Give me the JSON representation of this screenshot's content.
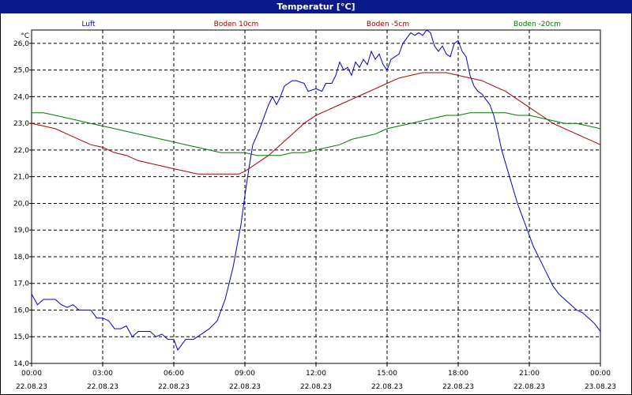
{
  "window": {
    "title": "Temperatur [°C]"
  },
  "chart_data": {
    "type": "line",
    "title": "Temperatur [°C]",
    "ylabel": "°C",
    "ylim": [
      14.0,
      26.5
    ],
    "y_ticks": [
      "14,0",
      "15,0",
      "16,0",
      "17,0",
      "18,0",
      "19,0",
      "20,0",
      "21,0",
      "22,0",
      "23,0",
      "24,0",
      "25,0",
      "26,0"
    ],
    "x_ticks": [
      {
        "time": "00:00",
        "date": "22.08.23"
      },
      {
        "time": "03:00",
        "date": "22.08.23"
      },
      {
        "time": "06:00",
        "date": "22.08.23"
      },
      {
        "time": "09:00",
        "date": "22.08.23"
      },
      {
        "time": "12:00",
        "date": "22.08.23"
      },
      {
        "time": "15:00",
        "date": "22.08.23"
      },
      {
        "time": "18:00",
        "date": "22.08.23"
      },
      {
        "time": "21:00",
        "date": "22.08.23"
      },
      {
        "time": "00:00",
        "date": "23.08.23"
      }
    ],
    "grid": true,
    "legend_position": "top",
    "series": [
      {
        "name": "Luft",
        "color": "#0000cc",
        "points": [
          [
            "00:00",
            16.6
          ],
          [
            "00:15",
            16.2
          ],
          [
            "00:30",
            16.4
          ],
          [
            "01:00",
            16.4
          ],
          [
            "01:15",
            16.2
          ],
          [
            "01:30",
            16.1
          ],
          [
            "01:45",
            16.2
          ],
          [
            "02:00",
            16.0
          ],
          [
            "02:30",
            16.0
          ],
          [
            "02:45",
            15.7
          ],
          [
            "03:00",
            15.7
          ],
          [
            "03:15",
            15.6
          ],
          [
            "03:30",
            15.3
          ],
          [
            "03:45",
            15.3
          ],
          [
            "04:00",
            15.4
          ],
          [
            "04:15",
            15.0
          ],
          [
            "04:30",
            15.2
          ],
          [
            "05:00",
            15.2
          ],
          [
            "05:15",
            15.0
          ],
          [
            "05:30",
            15.1
          ],
          [
            "05:45",
            14.9
          ],
          [
            "06:00",
            14.9
          ],
          [
            "06:10",
            14.5
          ],
          [
            "06:20",
            14.7
          ],
          [
            "06:30",
            14.9
          ],
          [
            "06:50",
            14.9
          ],
          [
            "07:10",
            15.1
          ],
          [
            "07:30",
            15.3
          ],
          [
            "07:50",
            15.6
          ],
          [
            "08:10",
            16.4
          ],
          [
            "08:30",
            17.6
          ],
          [
            "08:50",
            19.2
          ],
          [
            "09:00",
            20.3
          ],
          [
            "09:10",
            21.3
          ],
          [
            "09:20",
            22.2
          ],
          [
            "09:35",
            22.7
          ],
          [
            "09:45",
            23.1
          ],
          [
            "10:00",
            23.7
          ],
          [
            "10:10",
            24.0
          ],
          [
            "10:20",
            23.7
          ],
          [
            "10:30",
            24.0
          ],
          [
            "10:40",
            24.4
          ],
          [
            "10:50",
            24.5
          ],
          [
            "11:00",
            24.6
          ],
          [
            "11:10",
            24.6
          ],
          [
            "11:30",
            24.5
          ],
          [
            "11:40",
            24.2
          ],
          [
            "12:00",
            24.3
          ],
          [
            "12:15",
            24.2
          ],
          [
            "12:25",
            24.5
          ],
          [
            "12:40",
            24.5
          ],
          [
            "12:50",
            24.8
          ],
          [
            "13:00",
            25.3
          ],
          [
            "13:10",
            25.0
          ],
          [
            "13:20",
            25.1
          ],
          [
            "13:30",
            24.8
          ],
          [
            "13:40",
            25.3
          ],
          [
            "13:50",
            25.1
          ],
          [
            "14:00",
            25.4
          ],
          [
            "14:10",
            25.2
          ],
          [
            "14:20",
            25.7
          ],
          [
            "14:30",
            25.4
          ],
          [
            "14:40",
            25.6
          ],
          [
            "14:50",
            25.2
          ],
          [
            "15:00",
            25.0
          ],
          [
            "15:10",
            25.4
          ],
          [
            "15:20",
            25.5
          ],
          [
            "15:30",
            25.6
          ],
          [
            "15:40",
            26.0
          ],
          [
            "15:50",
            26.2
          ],
          [
            "16:00",
            26.4
          ],
          [
            "16:10",
            26.3
          ],
          [
            "16:20",
            26.4
          ],
          [
            "16:30",
            26.3
          ],
          [
            "16:40",
            26.5
          ],
          [
            "16:50",
            26.4
          ],
          [
            "17:00",
            25.9
          ],
          [
            "17:10",
            25.7
          ],
          [
            "17:20",
            25.9
          ],
          [
            "17:30",
            25.6
          ],
          [
            "17:40",
            25.5
          ],
          [
            "17:50",
            26.0
          ],
          [
            "18:00",
            26.1
          ],
          [
            "18:10",
            25.7
          ],
          [
            "18:20",
            25.5
          ],
          [
            "18:30",
            24.8
          ],
          [
            "18:40",
            24.4
          ],
          [
            "18:50",
            24.2
          ],
          [
            "19:00",
            24.1
          ],
          [
            "19:10",
            23.9
          ],
          [
            "19:20",
            23.7
          ],
          [
            "19:30",
            23.3
          ],
          [
            "19:40",
            22.7
          ],
          [
            "19:50",
            22.0
          ],
          [
            "20:00",
            21.5
          ],
          [
            "20:10",
            21.0
          ],
          [
            "20:20",
            20.5
          ],
          [
            "20:30",
            20.0
          ],
          [
            "20:40",
            19.6
          ],
          [
            "20:50",
            19.2
          ],
          [
            "21:00",
            18.8
          ],
          [
            "21:10",
            18.4
          ],
          [
            "21:20",
            18.1
          ],
          [
            "21:30",
            17.8
          ],
          [
            "21:40",
            17.5
          ],
          [
            "21:50",
            17.2
          ],
          [
            "22:00",
            16.9
          ],
          [
            "22:15",
            16.6
          ],
          [
            "22:30",
            16.4
          ],
          [
            "22:45",
            16.2
          ],
          [
            "23:00",
            16.0
          ],
          [
            "23:15",
            15.9
          ],
          [
            "23:30",
            15.7
          ],
          [
            "23:45",
            15.5
          ],
          [
            "24:00",
            15.2
          ]
        ]
      },
      {
        "name": "Boden 10cm",
        "color": "#aa0000",
        "points": [
          [
            "00:00",
            23.0
          ],
          [
            "00:30",
            22.9
          ],
          [
            "01:00",
            22.8
          ],
          [
            "01:30",
            22.6
          ],
          [
            "02:00",
            22.4
          ],
          [
            "02:30",
            22.2
          ],
          [
            "03:00",
            22.1
          ],
          [
            "03:30",
            21.9
          ],
          [
            "04:00",
            21.8
          ],
          [
            "04:30",
            21.6
          ],
          [
            "05:00",
            21.5
          ],
          [
            "05:30",
            21.4
          ],
          [
            "06:00",
            21.3
          ],
          [
            "06:30",
            21.2
          ],
          [
            "07:00",
            21.1
          ],
          [
            "08:00",
            21.1
          ],
          [
            "08:45",
            21.1
          ],
          [
            "09:00",
            21.2
          ],
          [
            "09:20",
            21.4
          ],
          [
            "09:40",
            21.6
          ],
          [
            "10:00",
            21.8
          ],
          [
            "10:30",
            22.2
          ],
          [
            "11:00",
            22.6
          ],
          [
            "11:30",
            23.0
          ],
          [
            "12:00",
            23.3
          ],
          [
            "12:30",
            23.5
          ],
          [
            "13:00",
            23.7
          ],
          [
            "13:30",
            23.9
          ],
          [
            "14:00",
            24.1
          ],
          [
            "14:30",
            24.3
          ],
          [
            "15:00",
            24.5
          ],
          [
            "15:30",
            24.7
          ],
          [
            "16:00",
            24.8
          ],
          [
            "16:30",
            24.9
          ],
          [
            "17:00",
            24.9
          ],
          [
            "17:30",
            24.9
          ],
          [
            "18:00",
            24.8
          ],
          [
            "18:30",
            24.7
          ],
          [
            "19:00",
            24.6
          ],
          [
            "19:30",
            24.4
          ],
          [
            "20:00",
            24.2
          ],
          [
            "20:30",
            23.9
          ],
          [
            "21:00",
            23.6
          ],
          [
            "21:30",
            23.3
          ],
          [
            "22:00",
            23.0
          ],
          [
            "22:30",
            22.8
          ],
          [
            "23:00",
            22.6
          ],
          [
            "23:30",
            22.4
          ],
          [
            "24:00",
            22.2
          ]
        ]
      },
      {
        "name": "Boden -5cm",
        "color": "#8a0000",
        "points": []
      },
      {
        "name": "Boden -20cm",
        "color": "#007700",
        "points": [
          [
            "00:00",
            23.4
          ],
          [
            "00:30",
            23.4
          ],
          [
            "01:00",
            23.3
          ],
          [
            "01:30",
            23.2
          ],
          [
            "02:00",
            23.1
          ],
          [
            "02:30",
            23.0
          ],
          [
            "03:00",
            22.9
          ],
          [
            "03:30",
            22.8
          ],
          [
            "04:00",
            22.7
          ],
          [
            "04:30",
            22.6
          ],
          [
            "05:00",
            22.5
          ],
          [
            "05:30",
            22.4
          ],
          [
            "06:00",
            22.3
          ],
          [
            "06:30",
            22.2
          ],
          [
            "07:00",
            22.1
          ],
          [
            "07:30",
            22.0
          ],
          [
            "08:00",
            21.9
          ],
          [
            "08:30",
            21.9
          ],
          [
            "09:00",
            21.9
          ],
          [
            "09:30",
            21.8
          ],
          [
            "10:00",
            21.8
          ],
          [
            "10:30",
            21.8
          ],
          [
            "11:00",
            21.9
          ],
          [
            "11:30",
            21.9
          ],
          [
            "12:00",
            22.0
          ],
          [
            "12:30",
            22.1
          ],
          [
            "13:00",
            22.2
          ],
          [
            "13:30",
            22.4
          ],
          [
            "14:00",
            22.5
          ],
          [
            "14:30",
            22.6
          ],
          [
            "15:00",
            22.8
          ],
          [
            "15:30",
            22.9
          ],
          [
            "16:00",
            23.0
          ],
          [
            "16:30",
            23.1
          ],
          [
            "17:00",
            23.2
          ],
          [
            "17:30",
            23.3
          ],
          [
            "18:00",
            23.3
          ],
          [
            "18:30",
            23.4
          ],
          [
            "19:00",
            23.4
          ],
          [
            "19:30",
            23.4
          ],
          [
            "20:00",
            23.4
          ],
          [
            "20:30",
            23.3
          ],
          [
            "21:00",
            23.3
          ],
          [
            "21:30",
            23.2
          ],
          [
            "22:00",
            23.1
          ],
          [
            "22:30",
            23.0
          ],
          [
            "23:00",
            23.0
          ],
          [
            "23:30",
            22.9
          ],
          [
            "24:00",
            22.8
          ]
        ]
      }
    ]
  }
}
